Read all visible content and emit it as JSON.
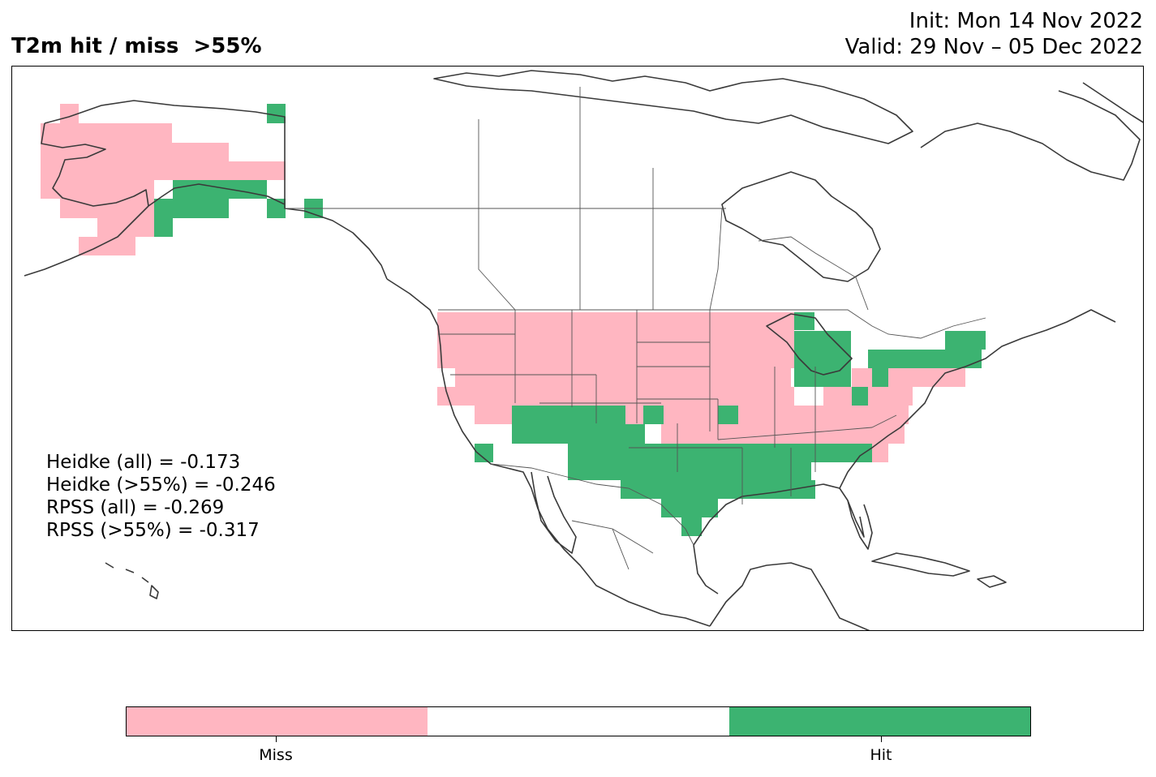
{
  "header": {
    "title": "T2m hit / miss  >55%",
    "init": "Init: Mon 14 Nov 2022",
    "valid": "Valid: 29 Nov – 05 Dec 2022"
  },
  "stats": [
    "Heidke (all) = -0.173",
    "Heidke (>55%) = -0.246",
    "RPSS (all) = -0.269",
    "RPSS (>55%) = -0.317"
  ],
  "legend": {
    "items": [
      {
        "label": "Miss",
        "color": "#ffb6c1"
      },
      {
        "label": "",
        "color": "#ffffff"
      },
      {
        "label": "Hit",
        "color": "#3cb371"
      }
    ]
  },
  "colors": {
    "miss": "#ffb6c1",
    "hit": "#3cb371",
    "coast": "#3a3a3a"
  }
}
